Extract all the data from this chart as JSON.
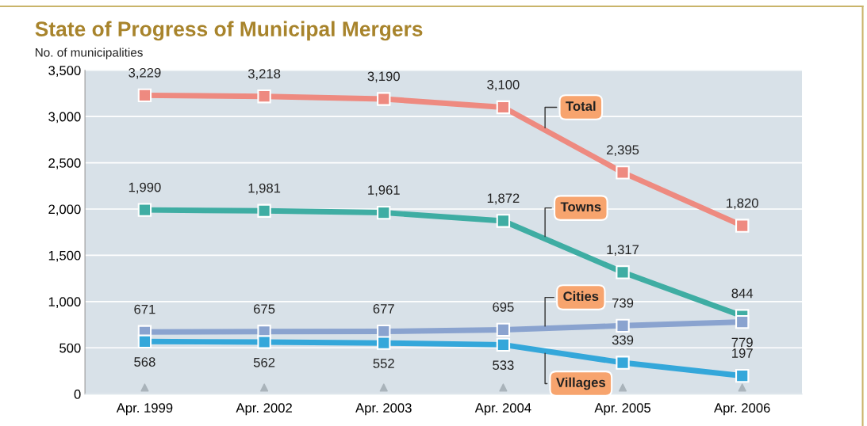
{
  "chart_data": {
    "type": "line",
    "title": "State of Progress of Municipal Mergers",
    "ylabel": "No. of municipalities",
    "categories": [
      "Apr. 1999",
      "Apr. 2002",
      "Apr. 2003",
      "Apr. 2004",
      "Apr. 2005",
      "Apr. 2006"
    ],
    "series": [
      {
        "name": "Total",
        "color": "#ee8a80",
        "values": [
          3229,
          3218,
          3190,
          3100,
          2395,
          1820
        ],
        "value_labels": [
          "3,229",
          "3,218",
          "3,190",
          "3,100",
          "2,395",
          "1,820"
        ]
      },
      {
        "name": "Towns",
        "color": "#3fada3",
        "values": [
          1990,
          1981,
          1961,
          1872,
          1317,
          844
        ],
        "value_labels": [
          "1,990",
          "1,981",
          "1,961",
          "1,872",
          "1,317",
          "844"
        ]
      },
      {
        "name": "Cities",
        "color": "#8aa3cf",
        "values": [
          671,
          675,
          677,
          695,
          739,
          779
        ],
        "value_labels": [
          "671",
          "675",
          "677",
          "695",
          "739",
          "779"
        ]
      },
      {
        "name": "Villages",
        "color": "#34a7da",
        "values": [
          568,
          562,
          552,
          533,
          339,
          197
        ],
        "value_labels": [
          "568",
          "562",
          "552",
          "533",
          "339",
          "197"
        ]
      }
    ],
    "ylim": [
      0,
      3500
    ],
    "yticks": [
      {
        "value": 0,
        "label": "0"
      },
      {
        "value": 500,
        "label": "500"
      },
      {
        "value": 1000,
        "label": "1,000"
      },
      {
        "value": 1500,
        "label": "1,500"
      },
      {
        "value": 2000,
        "label": "2,000"
      },
      {
        "value": 2500,
        "label": "2,500"
      },
      {
        "value": 3000,
        "label": "3,000"
      },
      {
        "value": 3500,
        "label": "3,500"
      }
    ],
    "grid": "y",
    "marker": "square",
    "line_style": "solid"
  }
}
